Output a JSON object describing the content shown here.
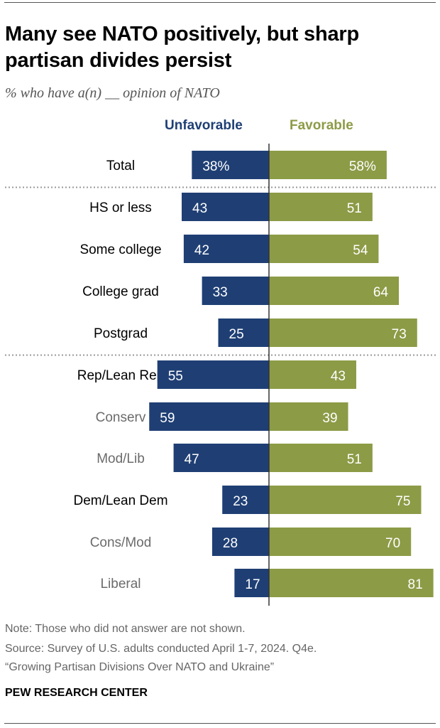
{
  "header": {
    "title": "Many see NATO positively, but sharp partisan divides persist",
    "subtitle": "% who have a(n) __ opinion of NATO"
  },
  "legend": {
    "unfavorable": "Unfavorable",
    "favorable": "Favorable"
  },
  "colors": {
    "unfavorable": "#1f3f74",
    "favorable": "#8c9b46",
    "primary_label": "#000000",
    "sub_label": "#6b6b6b"
  },
  "chart_data": {
    "type": "bar",
    "orientation": "diverging-horizontal",
    "categories": [
      "Total",
      "HS or less",
      "Some college",
      "College grad",
      "Postgrad",
      "Rep/Lean Rep",
      "Conserv",
      "Mod/Lib",
      "Dem/Lean Dem",
      "Cons/Mod",
      "Liberal"
    ],
    "category_style": [
      "primary",
      "primary",
      "primary",
      "primary",
      "primary",
      "primary",
      "secondary",
      "secondary",
      "primary",
      "secondary",
      "secondary"
    ],
    "series": [
      {
        "name": "Unfavorable",
        "values": [
          38,
          43,
          42,
          33,
          25,
          55,
          59,
          47,
          23,
          28,
          17
        ]
      },
      {
        "name": "Favorable",
        "values": [
          58,
          51,
          54,
          64,
          73,
          43,
          39,
          51,
          75,
          70,
          81
        ]
      }
    ],
    "value_labels": {
      "Unfavorable": [
        "38%",
        "43",
        "42",
        "33",
        "25",
        "55",
        "59",
        "47",
        "23",
        "28",
        "17"
      ],
      "Favorable": [
        "58%",
        "51",
        "54",
        "64",
        "73",
        "43",
        "39",
        "51",
        "75",
        "70",
        "81"
      ]
    },
    "unit": "%",
    "separators_after": [
      "Total",
      "Postgrad"
    ],
    "xlim": [
      0,
      100
    ]
  },
  "footer": {
    "note": "Note: Those who did not answer are not shown.",
    "source": "Source: Survey of U.S. adults conducted April 1-7, 2024. Q4e.",
    "report": "“Growing Partisan Divisions Over NATO and Ukraine”",
    "brand": "PEW RESEARCH CENTER"
  }
}
